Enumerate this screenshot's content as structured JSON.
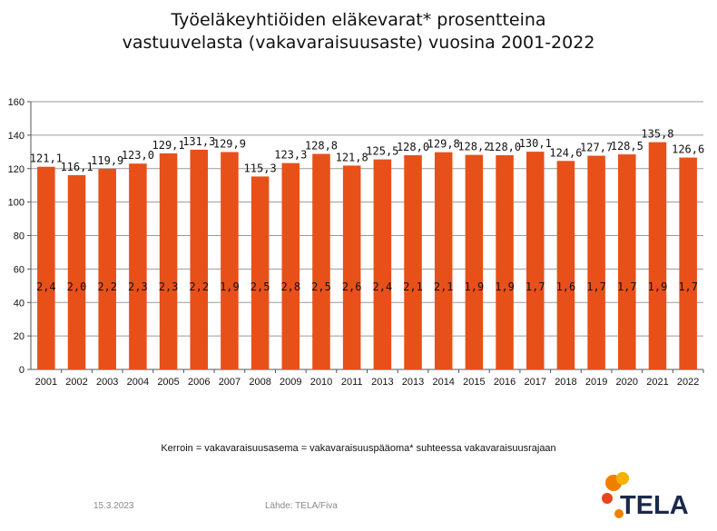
{
  "title": {
    "line1": "Työeläkeyhtiöiden eläkevarat* prosentteina",
    "line2": "vastuuvelasta (vakavaraisuusaste) vuosina 2001-2022"
  },
  "note": "Kerroin = vakavaraisuusasema = vakavaraisuuspääoma* suhteessa vakavaraisuusrajaan",
  "footer": {
    "date": "15.3.2023",
    "source": "Lähde: TELA/Fiva"
  },
  "logo": {
    "text": "TELA",
    "colors": [
      "#f07f00",
      "#f5b000",
      "#e8451e"
    ]
  },
  "chart_data": {
    "type": "bar",
    "title": "Työeläkeyhtiöiden eläkevarat* prosentteina vastuuvelasta (vakavaraisuusaste) vuosina 2001-2022",
    "xlabel": "",
    "ylabel": "",
    "ylim": [
      0,
      160
    ],
    "yticks": [
      "0",
      "20",
      "40",
      "60",
      "80",
      "100",
      "120",
      "140",
      "160"
    ],
    "grid": true,
    "bar_color": "#e8501a",
    "categories": [
      "2001",
      "2002",
      "2003",
      "2004",
      "2005",
      "2006",
      "2007",
      "2008",
      "2009",
      "2010",
      "2011",
      "2013",
      "2013",
      "2014",
      "2015",
      "2016",
      "2017",
      "2018",
      "2019",
      "2020",
      "2021",
      "2022"
    ],
    "values": [
      121.1,
      116.1,
      119.9,
      123.0,
      129.1,
      131.3,
      129.9,
      115.3,
      123.3,
      128.8,
      121.8,
      125.5,
      128.0,
      129.8,
      128.2,
      128.0,
      130.1,
      124.6,
      127.7,
      128.5,
      135.8,
      126.6
    ],
    "value_labels": [
      "121,1",
      "116,1",
      "119,9",
      "123,0",
      "129,1",
      "131,3",
      "129,9",
      "115,3",
      "123,3",
      "128,8",
      "121,8",
      "125,5",
      "128,0",
      "129,8",
      "128,2",
      "128,0",
      "130,1",
      "124,6",
      "127,7",
      "128,5",
      "135,8",
      "126,6"
    ],
    "inner_labels": [
      "2,4",
      "2,0",
      "2,2",
      "2,3",
      "2,3",
      "2,2",
      "1,9",
      "2,5",
      "2,8",
      "2,5",
      "2,6",
      "2,4",
      "2,1",
      "2,1",
      "1,9",
      "1,9",
      "1,7",
      "1,6",
      "1,7",
      "1,7",
      "1,9",
      "1,7"
    ]
  }
}
